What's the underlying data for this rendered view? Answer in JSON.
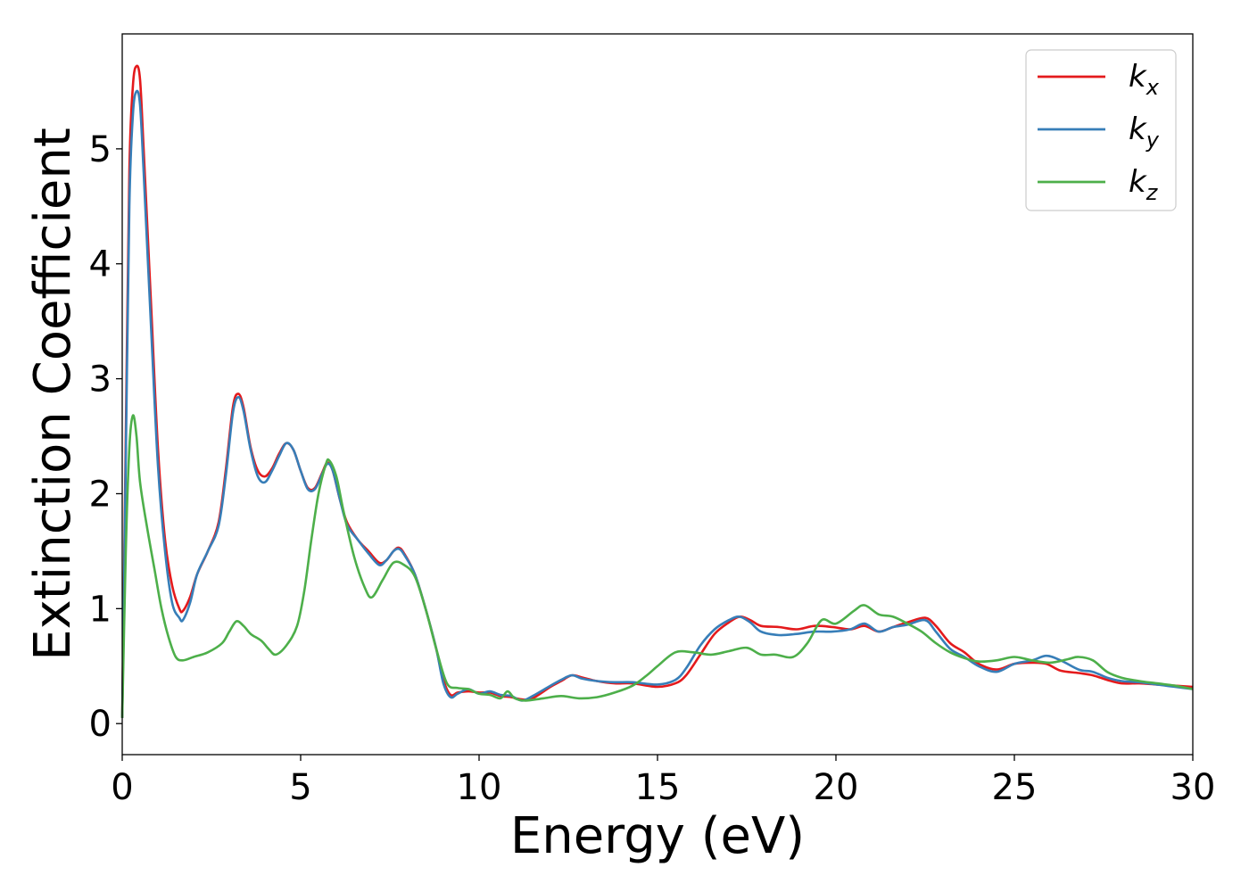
{
  "chart_data": {
    "type": "line",
    "xlabel": "Energy (eV)",
    "ylabel": "Extinction Coefficient",
    "xlim": [
      0,
      30
    ],
    "ylim": [
      -0.27,
      6.0
    ],
    "xticks": [
      0,
      5,
      10,
      15,
      20,
      25,
      30
    ],
    "yticks": [
      0,
      1,
      2,
      3,
      4,
      5
    ],
    "grid": false,
    "legend_position": "top-right",
    "series": [
      {
        "name": "k",
        "subscript": "x",
        "color": "#e41a1c",
        "points": [
          [
            0,
            0.05
          ],
          [
            0.1,
            2.5
          ],
          [
            0.2,
            4.8
          ],
          [
            0.3,
            5.55
          ],
          [
            0.4,
            5.72
          ],
          [
            0.5,
            5.6
          ],
          [
            0.6,
            5.0
          ],
          [
            0.8,
            3.7
          ],
          [
            1.0,
            2.4
          ],
          [
            1.2,
            1.6
          ],
          [
            1.4,
            1.2
          ],
          [
            1.6,
            1.0
          ],
          [
            1.7,
            0.98
          ],
          [
            1.9,
            1.1
          ],
          [
            2.1,
            1.3
          ],
          [
            2.4,
            1.5
          ],
          [
            2.7,
            1.75
          ],
          [
            2.9,
            2.2
          ],
          [
            3.1,
            2.75
          ],
          [
            3.25,
            2.87
          ],
          [
            3.4,
            2.75
          ],
          [
            3.6,
            2.4
          ],
          [
            3.8,
            2.2
          ],
          [
            4.0,
            2.15
          ],
          [
            4.2,
            2.22
          ],
          [
            4.4,
            2.35
          ],
          [
            4.6,
            2.44
          ],
          [
            4.8,
            2.38
          ],
          [
            5.0,
            2.2
          ],
          [
            5.2,
            2.05
          ],
          [
            5.4,
            2.05
          ],
          [
            5.6,
            2.18
          ],
          [
            5.75,
            2.27
          ],
          [
            5.9,
            2.2
          ],
          [
            6.1,
            1.95
          ],
          [
            6.3,
            1.75
          ],
          [
            6.6,
            1.6
          ],
          [
            6.9,
            1.5
          ],
          [
            7.2,
            1.4
          ],
          [
            7.4,
            1.42
          ],
          [
            7.6,
            1.5
          ],
          [
            7.75,
            1.53
          ],
          [
            7.9,
            1.48
          ],
          [
            8.2,
            1.3
          ],
          [
            8.5,
            1.0
          ],
          [
            8.8,
            0.65
          ],
          [
            9.0,
            0.38
          ],
          [
            9.2,
            0.25
          ],
          [
            9.4,
            0.27
          ],
          [
            9.7,
            0.28
          ],
          [
            10.0,
            0.27
          ],
          [
            10.3,
            0.27
          ],
          [
            10.6,
            0.24
          ],
          [
            10.9,
            0.23
          ],
          [
            11.2,
            0.21
          ],
          [
            11.5,
            0.22
          ],
          [
            12.0,
            0.32
          ],
          [
            12.3,
            0.37
          ],
          [
            12.6,
            0.42
          ],
          [
            12.9,
            0.4
          ],
          [
            13.3,
            0.37
          ],
          [
            13.8,
            0.35
          ],
          [
            14.3,
            0.35
          ],
          [
            15.0,
            0.32
          ],
          [
            15.5,
            0.35
          ],
          [
            15.8,
            0.42
          ],
          [
            16.2,
            0.6
          ],
          [
            16.6,
            0.78
          ],
          [
            17.0,
            0.88
          ],
          [
            17.3,
            0.93
          ],
          [
            17.6,
            0.9
          ],
          [
            17.9,
            0.85
          ],
          [
            18.4,
            0.84
          ],
          [
            18.9,
            0.82
          ],
          [
            19.4,
            0.85
          ],
          [
            19.9,
            0.84
          ],
          [
            20.4,
            0.82
          ],
          [
            20.8,
            0.85
          ],
          [
            21.2,
            0.8
          ],
          [
            21.6,
            0.84
          ],
          [
            22.0,
            0.88
          ],
          [
            22.5,
            0.92
          ],
          [
            22.8,
            0.85
          ],
          [
            23.2,
            0.7
          ],
          [
            23.6,
            0.62
          ],
          [
            24.0,
            0.52
          ],
          [
            24.5,
            0.47
          ],
          [
            25.0,
            0.52
          ],
          [
            25.5,
            0.53
          ],
          [
            25.9,
            0.52
          ],
          [
            26.3,
            0.46
          ],
          [
            26.8,
            0.44
          ],
          [
            27.2,
            0.42
          ],
          [
            27.6,
            0.38
          ],
          [
            28.0,
            0.35
          ],
          [
            28.5,
            0.35
          ],
          [
            29.0,
            0.34
          ],
          [
            29.5,
            0.33
          ],
          [
            30.0,
            0.32
          ]
        ]
      },
      {
        "name": "k",
        "subscript": "y",
        "color": "#377eb8",
        "points": [
          [
            0,
            0.05
          ],
          [
            0.1,
            2.3
          ],
          [
            0.2,
            4.5
          ],
          [
            0.3,
            5.3
          ],
          [
            0.4,
            5.5
          ],
          [
            0.5,
            5.38
          ],
          [
            0.6,
            4.8
          ],
          [
            0.8,
            3.5
          ],
          [
            1.0,
            2.25
          ],
          [
            1.2,
            1.5
          ],
          [
            1.4,
            1.05
          ],
          [
            1.6,
            0.92
          ],
          [
            1.7,
            0.9
          ],
          [
            1.9,
            1.05
          ],
          [
            2.1,
            1.3
          ],
          [
            2.4,
            1.5
          ],
          [
            2.7,
            1.72
          ],
          [
            2.9,
            2.15
          ],
          [
            3.1,
            2.7
          ],
          [
            3.25,
            2.84
          ],
          [
            3.4,
            2.72
          ],
          [
            3.6,
            2.38
          ],
          [
            3.8,
            2.15
          ],
          [
            4.0,
            2.1
          ],
          [
            4.2,
            2.2
          ],
          [
            4.4,
            2.33
          ],
          [
            4.6,
            2.44
          ],
          [
            4.8,
            2.38
          ],
          [
            5.0,
            2.2
          ],
          [
            5.2,
            2.04
          ],
          [
            5.4,
            2.04
          ],
          [
            5.6,
            2.17
          ],
          [
            5.75,
            2.26
          ],
          [
            5.9,
            2.2
          ],
          [
            6.1,
            1.95
          ],
          [
            6.3,
            1.73
          ],
          [
            6.6,
            1.6
          ],
          [
            6.9,
            1.48
          ],
          [
            7.2,
            1.38
          ],
          [
            7.4,
            1.42
          ],
          [
            7.6,
            1.5
          ],
          [
            7.75,
            1.52
          ],
          [
            7.9,
            1.47
          ],
          [
            8.2,
            1.3
          ],
          [
            8.5,
            1.0
          ],
          [
            8.8,
            0.65
          ],
          [
            9.0,
            0.35
          ],
          [
            9.2,
            0.23
          ],
          [
            9.4,
            0.26
          ],
          [
            9.7,
            0.3
          ],
          [
            10.0,
            0.26
          ],
          [
            10.3,
            0.28
          ],
          [
            10.6,
            0.25
          ],
          [
            10.9,
            0.24
          ],
          [
            11.2,
            0.2
          ],
          [
            11.5,
            0.24
          ],
          [
            12.0,
            0.33
          ],
          [
            12.3,
            0.38
          ],
          [
            12.6,
            0.42
          ],
          [
            12.9,
            0.39
          ],
          [
            13.3,
            0.37
          ],
          [
            13.8,
            0.36
          ],
          [
            14.3,
            0.36
          ],
          [
            15.0,
            0.34
          ],
          [
            15.5,
            0.38
          ],
          [
            15.8,
            0.48
          ],
          [
            16.2,
            0.68
          ],
          [
            16.6,
            0.82
          ],
          [
            17.0,
            0.9
          ],
          [
            17.3,
            0.93
          ],
          [
            17.6,
            0.88
          ],
          [
            17.9,
            0.8
          ],
          [
            18.4,
            0.77
          ],
          [
            18.9,
            0.78
          ],
          [
            19.4,
            0.8
          ],
          [
            19.9,
            0.8
          ],
          [
            20.4,
            0.82
          ],
          [
            20.8,
            0.87
          ],
          [
            21.2,
            0.8
          ],
          [
            21.6,
            0.84
          ],
          [
            22.0,
            0.86
          ],
          [
            22.5,
            0.9
          ],
          [
            22.8,
            0.8
          ],
          [
            23.2,
            0.65
          ],
          [
            23.6,
            0.58
          ],
          [
            24.0,
            0.5
          ],
          [
            24.5,
            0.45
          ],
          [
            25.0,
            0.52
          ],
          [
            25.5,
            0.55
          ],
          [
            25.9,
            0.59
          ],
          [
            26.3,
            0.55
          ],
          [
            26.8,
            0.47
          ],
          [
            27.2,
            0.45
          ],
          [
            27.6,
            0.4
          ],
          [
            28.0,
            0.37
          ],
          [
            28.5,
            0.36
          ],
          [
            29.0,
            0.34
          ],
          [
            29.5,
            0.32
          ],
          [
            30.0,
            0.3
          ]
        ]
      },
      {
        "name": "k",
        "subscript": "z",
        "color": "#4daf4a",
        "points": [
          [
            0,
            0.05
          ],
          [
            0.1,
            1.5
          ],
          [
            0.2,
            2.4
          ],
          [
            0.3,
            2.68
          ],
          [
            0.4,
            2.5
          ],
          [
            0.5,
            2.1
          ],
          [
            0.7,
            1.7
          ],
          [
            0.9,
            1.35
          ],
          [
            1.1,
            1.0
          ],
          [
            1.3,
            0.75
          ],
          [
            1.5,
            0.58
          ],
          [
            1.7,
            0.55
          ],
          [
            2.0,
            0.58
          ],
          [
            2.4,
            0.62
          ],
          [
            2.8,
            0.7
          ],
          [
            3.0,
            0.8
          ],
          [
            3.2,
            0.89
          ],
          [
            3.4,
            0.85
          ],
          [
            3.6,
            0.78
          ],
          [
            3.9,
            0.72
          ],
          [
            4.1,
            0.65
          ],
          [
            4.3,
            0.6
          ],
          [
            4.6,
            0.68
          ],
          [
            4.9,
            0.85
          ],
          [
            5.1,
            1.15
          ],
          [
            5.3,
            1.6
          ],
          [
            5.5,
            2.0
          ],
          [
            5.7,
            2.25
          ],
          [
            5.8,
            2.29
          ],
          [
            6.0,
            2.15
          ],
          [
            6.2,
            1.85
          ],
          [
            6.5,
            1.45
          ],
          [
            6.8,
            1.18
          ],
          [
            7.0,
            1.1
          ],
          [
            7.3,
            1.25
          ],
          [
            7.6,
            1.4
          ],
          [
            7.9,
            1.38
          ],
          [
            8.2,
            1.28
          ],
          [
            8.5,
            1.0
          ],
          [
            8.8,
            0.65
          ],
          [
            9.1,
            0.35
          ],
          [
            9.4,
            0.31
          ],
          [
            9.7,
            0.3
          ],
          [
            10.0,
            0.26
          ],
          [
            10.3,
            0.25
          ],
          [
            10.6,
            0.22
          ],
          [
            10.8,
            0.28
          ],
          [
            11.0,
            0.22
          ],
          [
            11.3,
            0.2
          ],
          [
            11.8,
            0.22
          ],
          [
            12.3,
            0.24
          ],
          [
            12.8,
            0.22
          ],
          [
            13.3,
            0.23
          ],
          [
            13.8,
            0.27
          ],
          [
            14.3,
            0.33
          ],
          [
            14.7,
            0.42
          ],
          [
            15.0,
            0.5
          ],
          [
            15.5,
            0.62
          ],
          [
            16.0,
            0.62
          ],
          [
            16.5,
            0.6
          ],
          [
            17.0,
            0.63
          ],
          [
            17.5,
            0.66
          ],
          [
            17.9,
            0.6
          ],
          [
            18.3,
            0.6
          ],
          [
            18.8,
            0.58
          ],
          [
            19.2,
            0.7
          ],
          [
            19.6,
            0.9
          ],
          [
            20.0,
            0.87
          ],
          [
            20.5,
            0.98
          ],
          [
            20.8,
            1.03
          ],
          [
            21.2,
            0.95
          ],
          [
            21.6,
            0.93
          ],
          [
            22.0,
            0.87
          ],
          [
            22.4,
            0.8
          ],
          [
            22.8,
            0.7
          ],
          [
            23.2,
            0.62
          ],
          [
            23.6,
            0.57
          ],
          [
            24.0,
            0.54
          ],
          [
            24.5,
            0.55
          ],
          [
            25.0,
            0.58
          ],
          [
            25.5,
            0.55
          ],
          [
            26.0,
            0.53
          ],
          [
            26.5,
            0.56
          ],
          [
            26.8,
            0.58
          ],
          [
            27.2,
            0.55
          ],
          [
            27.6,
            0.45
          ],
          [
            28.0,
            0.4
          ],
          [
            28.5,
            0.37
          ],
          [
            29.0,
            0.35
          ],
          [
            29.5,
            0.33
          ],
          [
            30.0,
            0.3
          ]
        ]
      }
    ]
  }
}
